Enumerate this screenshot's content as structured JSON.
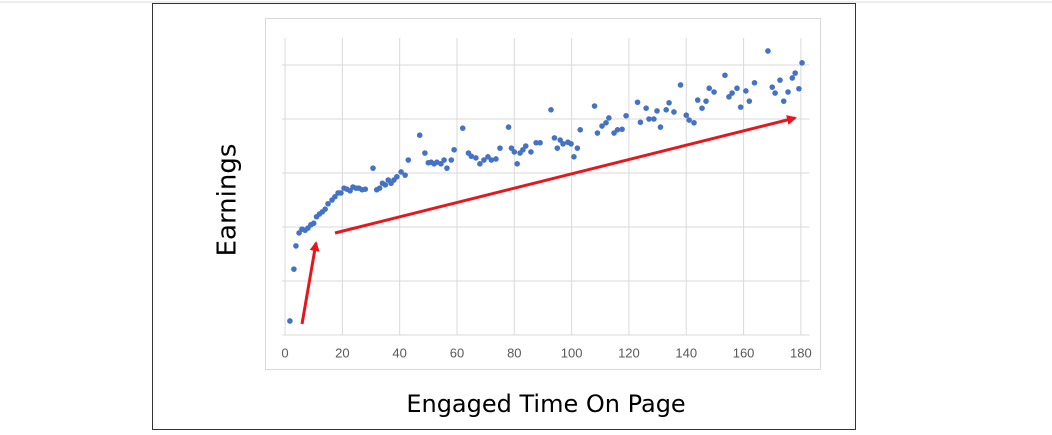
{
  "chart_data": {
    "type": "scatter",
    "x_label": "Engaged Time On Page",
    "y_label": "Earnings",
    "color": "#4472c4",
    "xlim": [
      -5,
      183
    ],
    "xticks": [
      0,
      20,
      40,
      60,
      80,
      100,
      120,
      140,
      160,
      180
    ],
    "ylim": [
      0,
      5.5
    ],
    "yticks": [
      0,
      1,
      2,
      3,
      4,
      5
    ],
    "ytick_labels": false,
    "grid": true,
    "x": [
      1.7,
      3.1,
      3.8,
      4.9,
      5.9,
      7,
      8,
      9,
      10,
      11,
      12,
      13,
      14,
      15,
      16.4,
      17.4,
      18.5,
      19.5,
      20.6,
      21.6,
      22.7,
      23.7,
      24.8,
      25.8,
      26.9,
      28,
      30.7,
      32,
      33,
      34,
      35,
      36,
      37,
      38,
      39,
      40.5,
      41.9,
      43,
      47,
      48.8,
      50,
      51,
      52,
      53,
      54.4,
      55.5,
      56.5,
      58,
      59,
      62,
      64,
      65,
      66.6,
      68,
      69.4,
      70.8,
      72,
      73.6,
      75,
      78,
      79,
      80,
      81,
      82,
      83,
      84,
      85.8,
      87.6,
      89,
      92.8,
      94,
      95,
      96,
      97,
      98.7,
      99.8,
      100.8,
      102,
      103,
      108,
      109,
      110.6,
      112,
      113,
      114.8,
      116,
      117.6,
      119,
      123,
      124,
      126,
      127,
      128.7,
      129.8,
      131,
      133,
      134,
      135.7,
      138,
      140,
      141,
      142.7,
      144,
      145.5,
      146.9,
      148,
      149.7,
      153.5,
      154.9,
      156,
      157.7,
      159,
      160.8,
      162,
      163.8,
      168.5,
      170,
      171,
      172.7,
      174,
      175.5,
      177,
      178,
      179.3,
      180.4
    ],
    "values": [
      0.26,
      1.22,
      1.65,
      1.89,
      1.96,
      1.94,
      1.98,
      2.04,
      2.07,
      2.19,
      2.24,
      2.28,
      2.33,
      2.43,
      2.5,
      2.56,
      2.63,
      2.63,
      2.72,
      2.7,
      2.67,
      2.74,
      2.72,
      2.72,
      2.69,
      2.7,
      3.09,
      2.69,
      2.72,
      2.81,
      2.78,
      2.87,
      2.81,
      2.87,
      2.93,
      3.02,
      2.96,
      3.24,
      3.7,
      3.37,
      3.19,
      3.2,
      3.17,
      3.2,
      3.17,
      3.24,
      3.09,
      3.24,
      3.43,
      3.83,
      3.37,
      3.31,
      3.28,
      3.17,
      3.24,
      3.3,
      3.24,
      3.26,
      3.46,
      3.85,
      3.46,
      3.39,
      3.17,
      3.37,
      3.43,
      3.5,
      3.39,
      3.56,
      3.56,
      4.17,
      3.65,
      3.46,
      3.61,
      3.54,
      3.57,
      3.54,
      3.3,
      3.46,
      3.8,
      4.24,
      3.74,
      3.87,
      3.93,
      4.02,
      3.74,
      3.8,
      3.81,
      4.06,
      4.31,
      3.94,
      4.2,
      4.0,
      4.0,
      4.15,
      3.85,
      4.17,
      4.3,
      4.13,
      4.63,
      4.07,
      3.98,
      3.93,
      4.35,
      4.2,
      4.33,
      4.57,
      4.5,
      4.81,
      4.41,
      4.48,
      4.57,
      4.22,
      4.52,
      4.33,
      4.67,
      5.26,
      4.59,
      4.48,
      4.72,
      4.33,
      4.5,
      4.76,
      4.85,
      4.56,
      5.04
    ]
  }
}
